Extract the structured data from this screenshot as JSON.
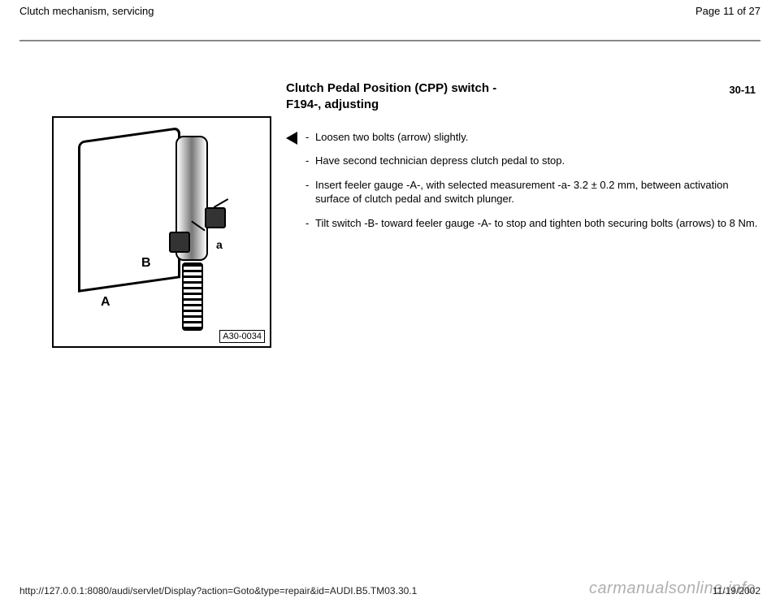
{
  "header": {
    "title": "Clutch mechanism, servicing",
    "page_label": "Page 11 of 27"
  },
  "page_code": "30-11",
  "section": {
    "title_line1": "Clutch Pedal Position (CPP) switch -",
    "title_line2": "F194-, adjusting"
  },
  "figure": {
    "code": "A30-0034",
    "labels": {
      "A": "A",
      "B": "B",
      "a": "a"
    }
  },
  "steps": [
    "Loosen two bolts (arrow) slightly.",
    "Have second technician depress clutch pedal to stop.",
    "Insert feeler gauge -A-, with selected measurement -a- 3.2 ± 0.2 mm, between activation surface of clutch pedal and switch plunger.",
    "Tilt switch -B- toward feeler gauge -A- to stop and tighten both securing bolts (arrows) to 8 Nm."
  ],
  "footer": {
    "url": "http://127.0.0.1:8080/audi/servlet/Display?action=Goto&type=repair&id=AUDI.B5.TM03.30.1",
    "date": "11/19/2002"
  },
  "watermark": "carmanualsonline.info",
  "colors": {
    "rule": "#888",
    "text": "#000",
    "watermark": "#b0b0b0"
  }
}
